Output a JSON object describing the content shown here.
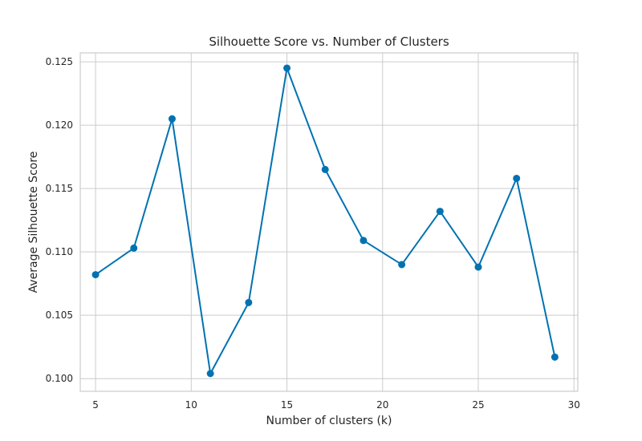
{
  "chart_data": {
    "type": "line",
    "title": "Silhouette Score vs. Number of Clusters",
    "xlabel": "Number of clusters (k)",
    "ylabel": "Average Silhouette Score",
    "xlim": [
      4.2,
      30.2
    ],
    "ylim": [
      0.099,
      0.1257
    ],
    "x_ticks": [
      5,
      10,
      15,
      20,
      25,
      30
    ],
    "x_tick_labels": [
      "5",
      "10",
      "15",
      "20",
      "25",
      "30"
    ],
    "y_ticks": [
      0.1,
      0.105,
      0.11,
      0.115,
      0.12,
      0.125
    ],
    "y_tick_labels": [
      "0.100",
      "0.105",
      "0.110",
      "0.115",
      "0.120",
      "0.125"
    ],
    "grid": true,
    "color": "#0072b2",
    "series": [
      {
        "x": [
          5,
          7,
          9,
          11,
          13,
          15,
          17,
          19,
          21,
          23,
          25,
          27,
          29
        ],
        "y": [
          0.1082,
          0.1103,
          0.1205,
          0.1004,
          0.106,
          0.1245,
          0.1165,
          0.1109,
          0.109,
          0.1132,
          0.1088,
          0.1158,
          0.1017
        ]
      }
    ]
  }
}
